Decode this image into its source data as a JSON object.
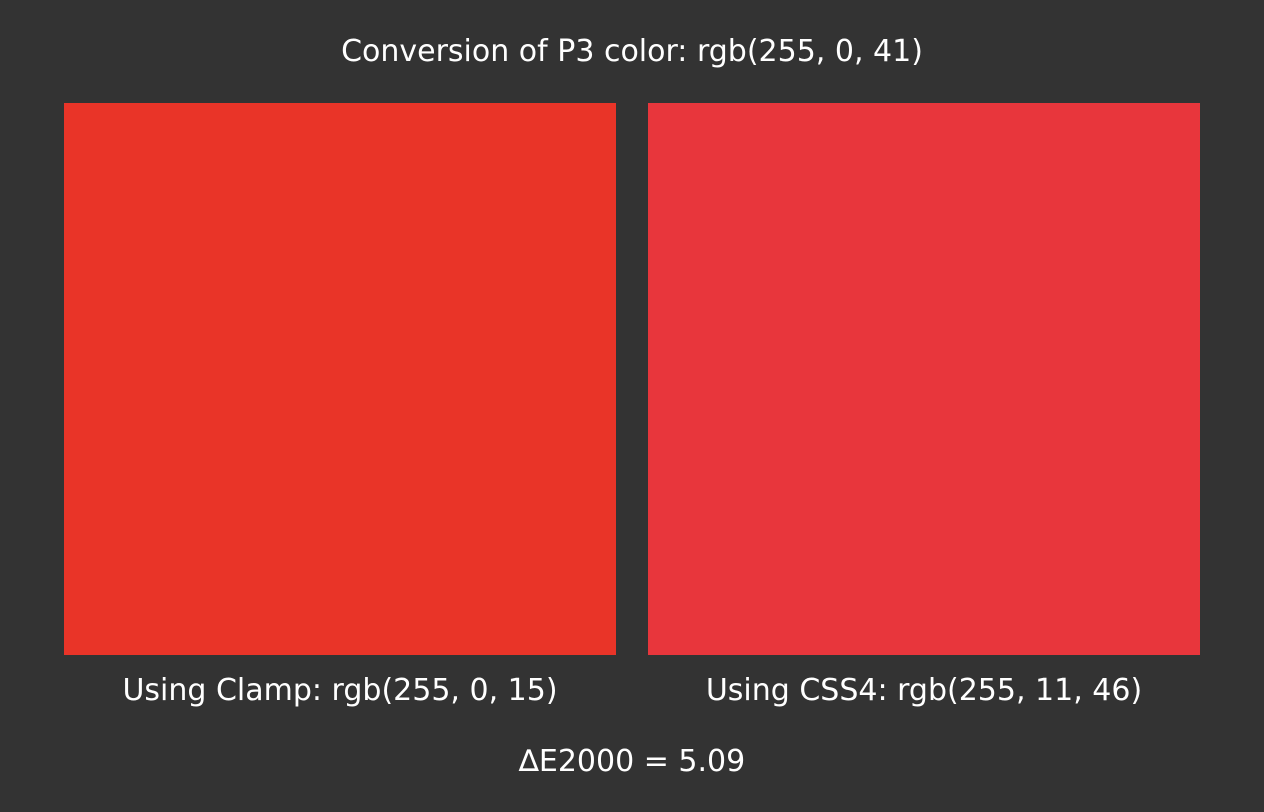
{
  "title": "Conversion of P3 color: rgb(255, 0, 41)",
  "swatches": [
    {
      "caption": "Using Clamp: rgb(255, 0, 15)",
      "color": "#E93428"
    },
    {
      "caption": "Using CSS4: rgb(255, 11, 46)",
      "color": "#E8363C"
    }
  ],
  "delta": "∆E2000 = 5.09"
}
